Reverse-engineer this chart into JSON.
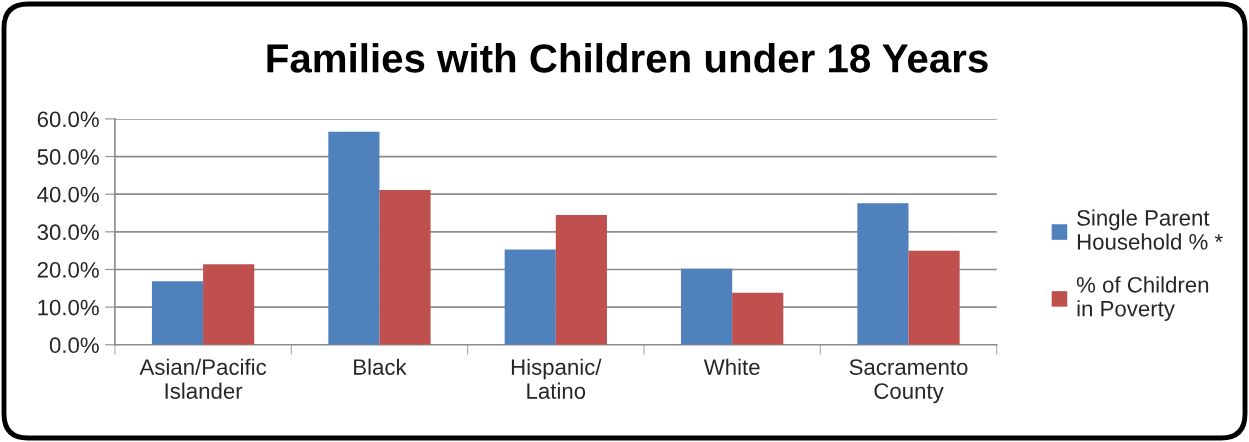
{
  "chart_data": {
    "type": "bar",
    "title": "Families with Children under 18 Years",
    "categories": [
      "Asian/Pacific\nIslander",
      "Black",
      "Hispanic/\nLatino",
      "White",
      "Sacramento\nCounty"
    ],
    "series": [
      {
        "name": "Single Parent\nHousehold % *",
        "color": "#4f81bd",
        "values": [
          16.9,
          56.6,
          25.3,
          20.2,
          37.6
        ]
      },
      {
        "name": "% of Children\nin Poverty",
        "color": "#c0504d",
        "values": [
          21.4,
          41.1,
          34.5,
          13.8,
          25.0
        ]
      }
    ],
    "ylim": [
      0,
      60
    ],
    "yticks": [
      {
        "value": 0,
        "label": "0.0%"
      },
      {
        "value": 10,
        "label": "10.0%"
      },
      {
        "value": 20,
        "label": "20.0%"
      },
      {
        "value": 30,
        "label": "30.0%"
      },
      {
        "value": 40,
        "label": "40.0%"
      },
      {
        "value": 50,
        "label": "50.0%"
      },
      {
        "value": 60,
        "label": "60.0%"
      }
    ],
    "grid": "y",
    "legend": "right"
  }
}
